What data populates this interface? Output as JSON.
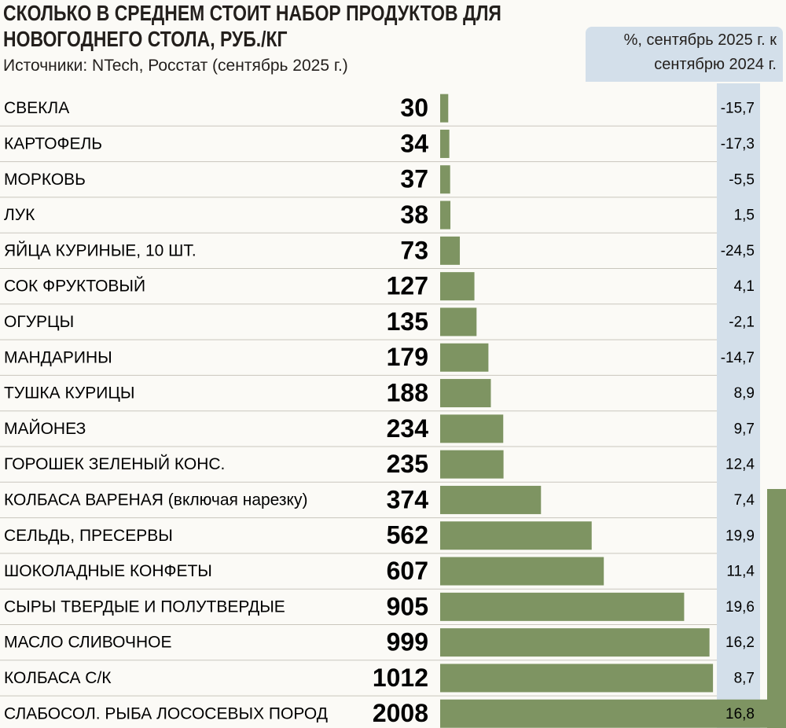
{
  "chart_data": {
    "type": "bar",
    "title": "СКОЛЬКО В СРЕДНЕМ СТОИТ НАБОР ПРОДУКТОВ ДЛЯ НОВОГОДНЕГО СТОЛА, РУБ./КГ",
    "subtitle": "Источники: NTech, Росстат (сентябрь 2025 г.)",
    "change_header": "%, сентябрь 2025 г. к сентябрю 2024 г.",
    "color": "#7e9462",
    "categories": [
      "СВЕКЛА",
      "КАРТОФЕЛЬ",
      "МОРКОВЬ",
      "ЛУК",
      "ЯЙЦА КУРИНЫЕ, 10 ШТ.",
      "СОК ФРУКТОВЫЙ",
      "ОГУРЦЫ",
      "МАНДАРИНЫ",
      "ТУШКА КУРИЦЫ",
      "МАЙОНЕЗ",
      "ГОРОШЕК ЗЕЛЕНЫЙ КОНС.",
      "КОЛБАСА ВАРЕНАЯ (включая нарезку)",
      "СЕЛЬДЬ, ПРЕСЕРВЫ",
      "ШОКОЛАДНЫЕ КОНФЕТЫ",
      "СЫРЫ ТВЕРДЫЕ И ПОЛУТВЕРДЫЕ",
      "МАСЛО СЛИВОЧНОЕ",
      "КОЛБАСА С/К",
      "СЛАБОСОЛ. РЫБА ЛОСОСЕВЫХ ПОРОД"
    ],
    "values": [
      30,
      34,
      37,
      38,
      73,
      127,
      135,
      179,
      188,
      234,
      235,
      374,
      562,
      607,
      905,
      999,
      1012,
      2008
    ],
    "changes": {
      "values": [
        -15.7,
        -17.3,
        -5.5,
        1.5,
        -24.5,
        4.1,
        -2.1,
        -14.7,
        8.9,
        9.7,
        12.4,
        7.4,
        19.9,
        11.4,
        19.6,
        16.2,
        8.7,
        16.8
      ],
      "value_labels": [
        "-15,7",
        "-17,3",
        "-5,5",
        "1,5",
        "-24,5",
        "4,1",
        "-2,1",
        "-14,7",
        "8,9",
        "9,7",
        "12,4",
        "7,4",
        "19,9",
        "11,4",
        "19,6",
        "16,2",
        "8,7",
        "16,8"
      ]
    }
  }
}
